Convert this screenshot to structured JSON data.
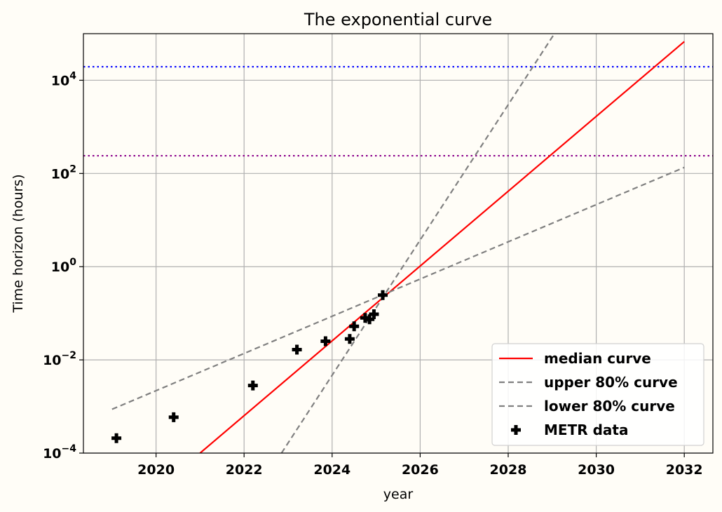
{
  "chart_data": {
    "type": "line",
    "title": "The exponential curve",
    "xlabel": "year",
    "ylabel": "Time horizon (hours)",
    "xlim": [
      2018.35,
      2032.65
    ],
    "ylim_log10": [
      -4,
      5
    ],
    "y_scale": "log",
    "x_ticks": [
      2020,
      2022,
      2024,
      2026,
      2028,
      2030,
      2032
    ],
    "y_ticks": [
      {
        "exp": -4,
        "base": "10",
        "sup": "−4"
      },
      {
        "exp": -2,
        "base": "10",
        "sup": "−2"
      },
      {
        "exp": 0,
        "base": "10",
        "sup": "0"
      },
      {
        "exp": 2,
        "base": "10",
        "sup": "2"
      },
      {
        "exp": 4,
        "base": "10",
        "sup": "4"
      }
    ],
    "grid": true,
    "legend_position": "bottom-right",
    "hlines": [
      {
        "name": "blue-threshold",
        "y_log10": 4.29,
        "color": "#0000ff"
      },
      {
        "name": "purple-threshold",
        "y_log10": 2.38,
        "color": "#8b008b"
      }
    ],
    "series": [
      {
        "name": "median curve",
        "kind": "line",
        "color": "#ff0000",
        "dash": "",
        "x": [
          2021.0,
          2032.0
        ],
        "y_log10": [
          -4.0,
          4.83
        ]
      },
      {
        "name": "upper 80% curve",
        "kind": "line",
        "color": "#808080",
        "dash": "8,5",
        "x": [
          2022.85,
          2029.05
        ],
        "y_log10": [
          -4.0,
          5.0
        ]
      },
      {
        "name": "lower 80% curve",
        "kind": "line",
        "color": "#808080",
        "dash": "8,5",
        "x": [
          2019.0,
          2032.0
        ],
        "y_log10": [
          -3.06,
          2.13
        ]
      },
      {
        "name": "METR data",
        "kind": "scatter",
        "marker": "plus",
        "color": "#000000",
        "x": [
          2019.1,
          2020.4,
          2022.2,
          2023.2,
          2023.85,
          2024.4,
          2024.5,
          2024.75,
          2024.85,
          2024.95,
          2025.15
        ],
        "y_log10": [
          -3.68,
          -3.23,
          -2.55,
          -1.78,
          -1.6,
          -1.55,
          -1.28,
          -1.1,
          -1.13,
          -1.02,
          -0.61
        ]
      }
    ],
    "legend": [
      {
        "label": "median curve",
        "color": "#ff0000",
        "kind": "line",
        "dash": ""
      },
      {
        "label": "upper 80% curve",
        "color": "#808080",
        "kind": "line",
        "dash": "8,5"
      },
      {
        "label": "lower 80% curve",
        "color": "#808080",
        "kind": "line",
        "dash": "8,5"
      },
      {
        "label": "METR data",
        "color": "#000000",
        "kind": "marker",
        "dash": ""
      }
    ]
  }
}
